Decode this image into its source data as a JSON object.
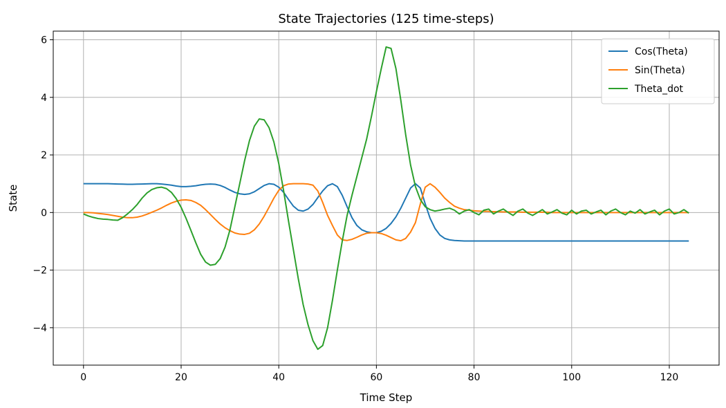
{
  "chart_data": {
    "type": "line",
    "title": "State Trajectories (125 time-steps)",
    "xlabel": "Time Step",
    "ylabel": "State",
    "xlim": [
      -6.2,
      130.2
    ],
    "ylim": [
      -5.3,
      6.3
    ],
    "xticks": [
      0,
      20,
      40,
      60,
      80,
      100,
      120
    ],
    "yticks": [
      -4,
      -2,
      0,
      2,
      4,
      6
    ],
    "xtick_labels": [
      "0",
      "20",
      "40",
      "60",
      "80",
      "100",
      "120"
    ],
    "ytick_labels": [
      "−4",
      "−2",
      "0",
      "2",
      "4",
      "6"
    ],
    "grid": true,
    "legend_position": "top-right",
    "colors": {
      "series0": "#1f77b4",
      "series1": "#ff7f0e",
      "series2": "#2ca02c",
      "grid": "#b0b0b0"
    },
    "x": [
      0,
      1,
      2,
      3,
      4,
      5,
      6,
      7,
      8,
      9,
      10,
      11,
      12,
      13,
      14,
      15,
      16,
      17,
      18,
      19,
      20,
      21,
      22,
      23,
      24,
      25,
      26,
      27,
      28,
      29,
      30,
      31,
      32,
      33,
      34,
      35,
      36,
      37,
      38,
      39,
      40,
      41,
      42,
      43,
      44,
      45,
      46,
      47,
      48,
      49,
      50,
      51,
      52,
      53,
      54,
      55,
      56,
      57,
      58,
      59,
      60,
      61,
      62,
      63,
      64,
      65,
      66,
      67,
      68,
      69,
      70,
      71,
      72,
      73,
      74,
      75,
      76,
      77,
      78,
      79,
      80,
      81,
      82,
      83,
      84,
      85,
      86,
      87,
      88,
      89,
      90,
      91,
      92,
      93,
      94,
      95,
      96,
      97,
      98,
      99,
      100,
      101,
      102,
      103,
      104,
      105,
      106,
      107,
      108,
      109,
      110,
      111,
      112,
      113,
      114,
      115,
      116,
      117,
      118,
      119,
      120,
      121,
      122,
      123,
      124
    ],
    "series": [
      {
        "name": "Cos(Theta)",
        "values": [
          1.0,
          1.0,
          1.0,
          1.0,
          1.0,
          1.0,
          0.995,
          0.99,
          0.985,
          0.98,
          0.98,
          0.985,
          0.99,
          0.995,
          1.0,
          1.0,
          0.99,
          0.97,
          0.95,
          0.92,
          0.9,
          0.9,
          0.91,
          0.93,
          0.96,
          0.98,
          0.99,
          0.98,
          0.94,
          0.87,
          0.78,
          0.7,
          0.65,
          0.63,
          0.65,
          0.72,
          0.83,
          0.94,
          1.0,
          0.98,
          0.88,
          0.7,
          0.45,
          0.22,
          0.08,
          0.05,
          0.12,
          0.28,
          0.52,
          0.75,
          0.93,
          1.0,
          0.9,
          0.6,
          0.2,
          -0.18,
          -0.45,
          -0.6,
          -0.67,
          -0.7,
          -0.7,
          -0.65,
          -0.55,
          -0.38,
          -0.15,
          0.15,
          0.5,
          0.85,
          1.0,
          0.85,
          0.3,
          -0.2,
          -0.55,
          -0.78,
          -0.9,
          -0.95,
          -0.97,
          -0.98,
          -0.99,
          -0.99,
          -0.99,
          -0.99,
          -0.99,
          -0.99,
          -0.99,
          -0.99,
          -0.99,
          -0.99,
          -0.99,
          -0.99,
          -0.99,
          -0.99,
          -0.99,
          -0.99,
          -0.99,
          -0.99,
          -0.99,
          -0.99,
          -0.99,
          -0.99,
          -0.99,
          -0.99,
          -0.99,
          -0.99,
          -0.99,
          -0.99,
          -0.99,
          -0.99,
          -0.99,
          -0.99,
          -0.99,
          -0.99,
          -0.99,
          -0.99,
          -0.99,
          -0.99,
          -0.99,
          -0.99,
          -0.99,
          -0.99,
          -0.99,
          -0.99,
          -0.99,
          -0.99,
          -0.99
        ]
      },
      {
        "name": "Sin(Theta)",
        "values": [
          0.0,
          0.0,
          -0.01,
          -0.03,
          -0.05,
          -0.07,
          -0.1,
          -0.13,
          -0.16,
          -0.18,
          -0.18,
          -0.16,
          -0.12,
          -0.06,
          0.01,
          0.08,
          0.16,
          0.25,
          0.33,
          0.39,
          0.43,
          0.44,
          0.42,
          0.35,
          0.25,
          0.1,
          -0.07,
          -0.24,
          -0.4,
          -0.53,
          -0.63,
          -0.71,
          -0.75,
          -0.76,
          -0.72,
          -0.6,
          -0.4,
          -0.13,
          0.18,
          0.5,
          0.77,
          0.93,
          0.99,
          1.0,
          1.0,
          1.0,
          0.99,
          0.95,
          0.75,
          0.35,
          -0.1,
          -0.45,
          -0.78,
          -0.95,
          -0.97,
          -0.93,
          -0.86,
          -0.78,
          -0.72,
          -0.7,
          -0.7,
          -0.73,
          -0.79,
          -0.87,
          -0.95,
          -0.98,
          -0.9,
          -0.68,
          -0.35,
          0.3,
          0.88,
          1.0,
          0.88,
          0.7,
          0.5,
          0.35,
          0.22,
          0.15,
          0.1,
          0.08,
          0.06,
          0.05,
          0.04,
          0.04,
          0.03,
          0.03,
          0.02,
          0.02,
          0.02,
          0.02,
          0.01,
          0.01,
          0.01,
          0.01,
          0.01,
          0.01,
          0.0,
          0.0,
          0.0,
          0.0,
          0.0,
          0.0,
          0.0,
          0.0,
          0.0,
          0.0,
          0.0,
          0.0,
          0.0,
          0.0,
          0.0,
          0.0,
          0.0,
          0.0,
          0.0,
          0.0,
          0.0,
          0.0,
          0.0,
          0.0,
          0.0,
          0.0,
          0.0,
          0.0,
          0.0
        ]
      },
      {
        "name": "Theta_dot",
        "values": [
          -0.05,
          -0.12,
          -0.17,
          -0.21,
          -0.23,
          -0.24,
          -0.26,
          -0.27,
          -0.18,
          -0.05,
          0.1,
          0.28,
          0.5,
          0.68,
          0.8,
          0.86,
          0.88,
          0.83,
          0.7,
          0.48,
          0.18,
          -0.2,
          -0.62,
          -1.05,
          -1.45,
          -1.72,
          -1.83,
          -1.8,
          -1.6,
          -1.2,
          -0.6,
          0.2,
          1.0,
          1.8,
          2.5,
          3.0,
          3.25,
          3.22,
          2.95,
          2.45,
          1.7,
          0.75,
          -0.3,
          -1.3,
          -2.3,
          -3.2,
          -3.9,
          -4.45,
          -4.75,
          -4.62,
          -4.0,
          -3.05,
          -2.0,
          -1.0,
          -0.1,
          0.6,
          1.25,
          1.9,
          2.55,
          3.35,
          4.2,
          5.0,
          5.75,
          5.7,
          5.0,
          3.9,
          2.7,
          1.65,
          0.9,
          0.45,
          0.2,
          0.1,
          0.05,
          0.08,
          0.12,
          0.15,
          0.08,
          -0.05,
          0.05,
          0.1,
          0.0,
          -0.08,
          0.08,
          0.12,
          -0.05,
          0.05,
          0.12,
          0.0,
          -0.1,
          0.05,
          0.12,
          -0.02,
          -0.1,
          0.0,
          0.1,
          -0.05,
          0.02,
          0.1,
          -0.02,
          -0.08,
          0.08,
          -0.05,
          0.05,
          0.08,
          -0.05,
          0.02,
          0.08,
          -0.08,
          0.05,
          0.12,
          0.0,
          -0.08,
          0.05,
          -0.02,
          0.1,
          -0.05,
          0.02,
          0.08,
          -0.08,
          0.05,
          0.12,
          -0.05,
          0.0,
          0.1,
          -0.02
        ]
      }
    ]
  }
}
